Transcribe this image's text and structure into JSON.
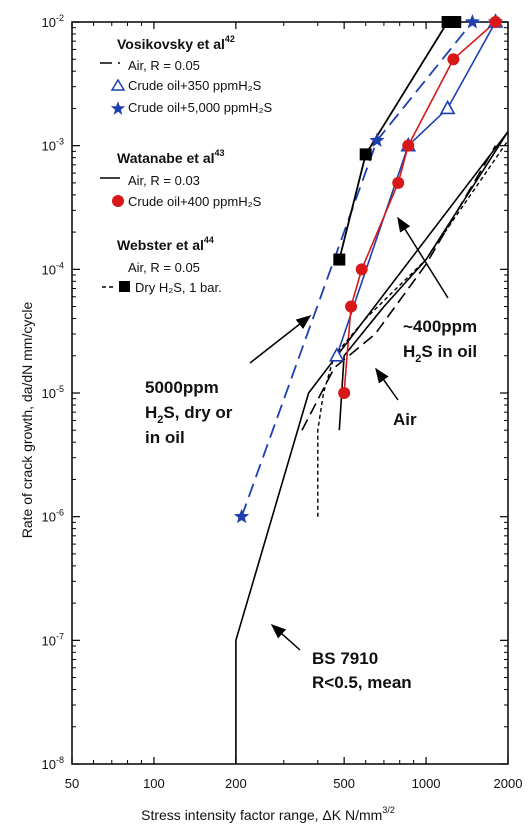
{
  "chart_data": {
    "type": "line",
    "x_scale": "log",
    "y_scale": "log",
    "xlim": [
      50,
      2000
    ],
    "ylim": [
      1e-08,
      0.01
    ],
    "xlabel": "Stress intensity factor range, ΔK N/mm",
    "xlabel_sup": "3/2",
    "ylabel": "Rate of crack growth,  da/dN mm/cycle",
    "x_ticks": [
      {
        "v": 50,
        "label": "50"
      },
      {
        "v": 100,
        "label": "100"
      },
      {
        "v": 200,
        "label": "200"
      },
      {
        "v": 500,
        "label": "500"
      },
      {
        "v": 1000,
        "label": "1000"
      },
      {
        "v": 2000,
        "label": "2000"
      }
    ],
    "y_ticks": [
      {
        "v": 1e-08,
        "m": "10",
        "e": "-8"
      },
      {
        "v": 1e-07,
        "m": "10",
        "e": "-7"
      },
      {
        "v": 1e-06,
        "m": "10",
        "e": "-6"
      },
      {
        "v": 1e-05,
        "m": "10",
        "e": "-5"
      },
      {
        "v": 0.0001,
        "m": "10",
        "e": "-4"
      },
      {
        "v": 0.001,
        "m": "10",
        "e": "-3"
      },
      {
        "v": 0.01,
        "m": "10",
        "e": "-2"
      }
    ],
    "series": [
      {
        "id": "vos-air",
        "color": "#000000",
        "dash": "12,6",
        "width": 1.6,
        "marker": "none",
        "x": [
          350,
          460,
          650,
          1000,
          1800
        ],
        "y": [
          5e-06,
          1.6e-05,
          3e-05,
          0.00011,
          0.001
        ]
      },
      {
        "id": "vos-350",
        "color": "#1f3fb0",
        "dash": "",
        "width": 1.6,
        "marker": "triangle",
        "x": [
          470,
          860,
          1200,
          1800
        ],
        "y": [
          2e-05,
          0.001,
          0.002,
          0.01
        ]
      },
      {
        "id": "vos-5000",
        "color": "#1f3fb0",
        "dash": "14,7",
        "width": 1.8,
        "marker": "star",
        "x": [
          210,
          660,
          1480,
          1800
        ],
        "y": [
          1e-06,
          0.0011,
          0.01,
          0.01
        ]
      },
      {
        "id": "wat-air",
        "color": "#000000",
        "dash": "",
        "width": 1.6,
        "marker": "none",
        "x": [
          480,
          500,
          700,
          1000,
          2000
        ],
        "y": [
          5e-06,
          2e-05,
          5e-05,
          0.00012,
          0.0013
        ]
      },
      {
        "id": "wat-400",
        "color": "#d81818",
        "dash": "",
        "width": 1.6,
        "marker": "circle",
        "x": [
          500,
          530,
          580,
          790,
          860,
          1260,
          1800
        ],
        "y": [
          1e-05,
          5e-05,
          0.0001,
          0.0005,
          0.001,
          0.005,
          0.01
        ]
      },
      {
        "id": "web-air",
        "color": "#000000",
        "dash": "4,3",
        "width": 1.4,
        "marker": "none",
        "x": [
          400,
          400,
          420,
          460,
          600,
          1000,
          2000
        ],
        "y": [
          1e-06,
          5e-06,
          1e-05,
          2e-05,
          4e-05,
          0.00012,
          0.0011
        ]
      },
      {
        "id": "web-dry",
        "color": "#000000",
        "dash": "",
        "width": 1.8,
        "marker": "square",
        "x": [
          480,
          600,
          1200,
          1280
        ],
        "y": [
          0.00012,
          0.00085,
          0.01,
          0.01
        ]
      },
      {
        "id": "bs7910",
        "color": "#000000",
        "dash": "",
        "width": 1.6,
        "marker": "none",
        "x": [
          200,
          200,
          370,
          2000
        ],
        "y": [
          1e-08,
          1e-07,
          1e-05,
          0.0013
        ]
      }
    ],
    "legend": {
      "groups": [
        {
          "head": "Vosikovsky et al",
          "ref": "42",
          "items": [
            {
              "label": "Air, R = 0.05",
              "swatch": "dash-black"
            },
            {
              "label": "Crude oil+350 ppmH₂S",
              "swatch": "triangle-blue"
            },
            {
              "label": "Crude oil+5,000 ppmH₂S",
              "swatch": "star-blue"
            }
          ]
        },
        {
          "head": "Watanabe et al",
          "ref": "43",
          "items": [
            {
              "label": "Air, R = 0.03",
              "swatch": "solid-black"
            },
            {
              "label": "Crude oil+400 ppmH₂S",
              "swatch": "circle-red"
            }
          ]
        },
        {
          "head": "Webster et al",
          "ref": "44",
          "items": [
            {
              "label": "Air, R = 0.05",
              "swatch": "none"
            },
            {
              "label": "Dry H₂S, 1 bar.",
              "swatch": "dot-square"
            }
          ]
        }
      ]
    },
    "annotations": {
      "oil400_line1": "~400ppm",
      "oil400_line2a": "H",
      "oil400_line2b": "2",
      "oil400_line2c": "S in oil",
      "h2s5000_line1": "5000ppm",
      "h2s5000_line2a": "H",
      "h2s5000_line2b": "2",
      "h2s5000_line2c": "S, dry or",
      "h2s5000_line3": "in oil",
      "air": "Air",
      "bs_line1": "BS 7910",
      "bs_line2": "R<0.5, mean"
    }
  }
}
